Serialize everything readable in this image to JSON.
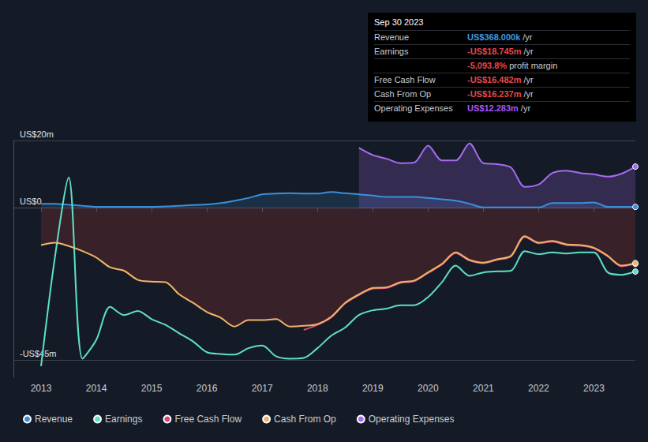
{
  "chart_data": {
    "type": "line",
    "x": [
      2013,
      2013.25,
      2013.5,
      2013.75,
      2014,
      2014.25,
      2014.5,
      2014.75,
      2015,
      2015.25,
      2015.5,
      2015.75,
      2016,
      2016.25,
      2016.5,
      2016.75,
      2017,
      2017.25,
      2017.5,
      2017.75,
      2018,
      2018.25,
      2018.5,
      2018.75,
      2019,
      2019.25,
      2019.5,
      2019.75,
      2020,
      2020.25,
      2020.5,
      2020.75,
      2021,
      2021.25,
      2021.5,
      2021.75,
      2022,
      2022.25,
      2022.5,
      2022.75,
      2023,
      2023.25,
      2023.5,
      2023.75
    ],
    "series": [
      {
        "name": "Revenue",
        "color": "#3b8fd9",
        "values": [
          1.3,
          1.3,
          1.0,
          0.7,
          0.4,
          0.4,
          0.4,
          0.4,
          0.4,
          0.5,
          0.7,
          0.9,
          1.1,
          1.5,
          2.2,
          3.0,
          4.1,
          4.3,
          4.4,
          4.3,
          4.3,
          4.8,
          4.4,
          4.1,
          3.7,
          3.3,
          3.3,
          3.3,
          3.0,
          2.6,
          2.2,
          1.3,
          0.2,
          0.2,
          0.2,
          0.2,
          0.2,
          1.5,
          1.5,
          1.5,
          1.7,
          0.4,
          0.4,
          0.368
        ]
      },
      {
        "name": "Earnings",
        "color": "#5ce1c6",
        "values": [
          -46.7,
          -14.6,
          9.1,
          -44.5,
          -38.9,
          -29.2,
          -31.6,
          -30.4,
          -32.8,
          -34.5,
          -37.0,
          -39.4,
          -42.6,
          -43.1,
          -43.3,
          -41.4,
          -40.6,
          -43.8,
          -44.5,
          -44.3,
          -41.4,
          -37.7,
          -35.3,
          -31.6,
          -30.2,
          -29.7,
          -28.7,
          -28.7,
          -26.3,
          -21.9,
          -17.0,
          -20.0,
          -19.0,
          -18.7,
          -18.5,
          -12.7,
          -13.6,
          -13.1,
          -13.4,
          -13.1,
          -13.1,
          -19.0,
          -19.7,
          -18.745
        ]
      },
      {
        "name": "Free Cash Flow",
        "color": "#d9467a",
        "values": [
          null,
          null,
          null,
          null,
          null,
          null,
          null,
          null,
          null,
          null,
          null,
          null,
          null,
          null,
          null,
          null,
          null,
          null,
          null,
          -36.0,
          -34.5,
          -32.3,
          -28.2,
          -25.7,
          -23.8,
          -23.6,
          -22.1,
          -21.6,
          -19.2,
          -16.7,
          -13.3,
          -15.5,
          -16.3,
          -15.3,
          -14.3,
          -8.5,
          -10.4,
          -9.9,
          -10.9,
          -11.1,
          -11.9,
          -14.3,
          -17.2,
          -16.482
        ]
      },
      {
        "name": "Cash From Op",
        "color": "#f0b36a",
        "values": [
          -10.9,
          -10.2,
          -11.2,
          -12.7,
          -14.6,
          -17.5,
          -18.5,
          -21.2,
          -21.7,
          -21.9,
          -25.5,
          -28.0,
          -30.7,
          -32.4,
          -35.0,
          -33.1,
          -33.1,
          -32.8,
          -35.0,
          -34.8,
          -34.3,
          -32.1,
          -28.0,
          -25.5,
          -23.6,
          -23.4,
          -21.9,
          -21.4,
          -19.0,
          -16.5,
          -13.1,
          -15.3,
          -16.1,
          -15.1,
          -14.1,
          -8.3,
          -10.2,
          -9.7,
          -10.7,
          -10.9,
          -11.7,
          -14.1,
          -17.0,
          -16.237
        ]
      },
      {
        "name": "Operating Expenses",
        "color": "#a66bf0",
        "values": [
          null,
          null,
          null,
          null,
          null,
          null,
          null,
          null,
          null,
          null,
          null,
          null,
          null,
          null,
          null,
          null,
          null,
          null,
          null,
          null,
          null,
          null,
          null,
          17.8,
          15.7,
          14.6,
          13.3,
          13.5,
          18.5,
          14.1,
          14.1,
          19.1,
          13.3,
          13.0,
          12.0,
          6.3,
          7.0,
          10.4,
          11.1,
          10.4,
          10.0,
          9.3,
          10.2,
          12.283
        ]
      }
    ],
    "xlim": [
      2012.5,
      2023.75
    ],
    "xticks": [
      2013,
      2014,
      2015,
      2016,
      2017,
      2018,
      2019,
      2020,
      2021,
      2022,
      2023
    ],
    "ylim": [
      -50,
      20
    ],
    "yticks": [
      {
        "value": 20,
        "label": "US$20m"
      },
      {
        "value": 0,
        "label": "US$0"
      },
      {
        "value": -45,
        "label": "-US$45m"
      }
    ],
    "grid": true,
    "legend": "bottom-left",
    "annotations": {
      "title": "Sep 30 2023",
      "rows": [
        {
          "label": "Revenue",
          "value": "US$368.000k",
          "unit": "/yr",
          "color": "#3b9ae1"
        },
        {
          "label": "Earnings",
          "value": "-US$18.745m",
          "unit": "/yr",
          "color": "#e5484d"
        },
        {
          "value": "-5,093.8%",
          "unit": "profit margin",
          "color": "#e5484d"
        },
        {
          "label": "Free Cash Flow",
          "value": "-US$16.482m",
          "unit": "/yr",
          "color": "#e5484d"
        },
        {
          "label": "Cash From Op",
          "value": "-US$16.237m",
          "unit": "/yr",
          "color": "#e5484d"
        },
        {
          "label": "Operating Expenses",
          "value": "US$12.283m",
          "unit": "/yr",
          "color": "#a855f7"
        }
      ]
    }
  }
}
